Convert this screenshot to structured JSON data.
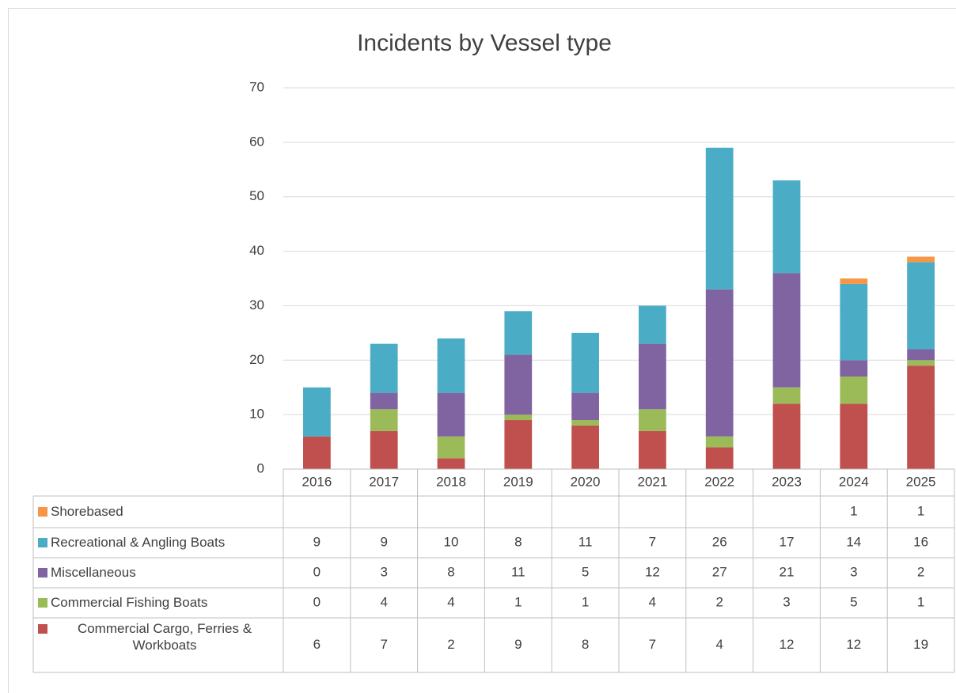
{
  "chart_data": {
    "type": "stacked_bar",
    "title": "Incidents by Vessel type",
    "categories": [
      "2016",
      "2017",
      "2018",
      "2019",
      "2020",
      "2021",
      "2022",
      "2023",
      "2024",
      "2025"
    ],
    "series": [
      {
        "name": "Commercial Cargo, Ferries & Workboats",
        "color": "#c0504d",
        "values": [
          6,
          7,
          2,
          9,
          8,
          7,
          4,
          12,
          12,
          19
        ]
      },
      {
        "name": "Commercial Fishing Boats",
        "color": "#9bbb59",
        "values": [
          0,
          4,
          4,
          1,
          1,
          4,
          2,
          3,
          5,
          1
        ]
      },
      {
        "name": "Miscellaneous",
        "color": "#8064a2",
        "values": [
          0,
          3,
          8,
          11,
          5,
          12,
          27,
          21,
          3,
          2
        ]
      },
      {
        "name": "Recreational & Angling Boats",
        "color": "#4bacc6",
        "values": [
          9,
          9,
          10,
          8,
          11,
          7,
          26,
          17,
          14,
          16
        ]
      },
      {
        "name": "Shorebased",
        "color": "#f79646",
        "values": [
          null,
          null,
          null,
          null,
          null,
          null,
          null,
          null,
          1,
          1
        ]
      }
    ],
    "ylim": [
      0,
      70
    ],
    "yticks": [
      0,
      10,
      20,
      30,
      40,
      50,
      60,
      70
    ],
    "grid": true
  }
}
